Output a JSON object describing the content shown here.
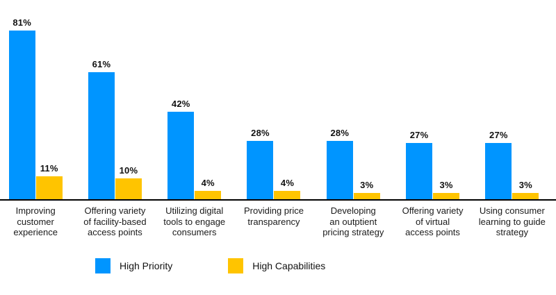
{
  "chart_data": {
    "type": "bar",
    "categories": [
      "Improving\ncustomer\nexperience",
      "Offering variety\nof facility-based\naccess points",
      "Utilizing digital\ntools to engage\nconsumers",
      "Providing price\ntransparency",
      "Developing\nan outptient\npricing strategy",
      "Offering variety\nof virtual\naccess points",
      "Using consumer\nlearning to guide\nstrategy"
    ],
    "series": [
      {
        "name": "High Priority",
        "color": "#0095FF",
        "values": [
          81,
          61,
          42,
          28,
          28,
          27,
          27
        ]
      },
      {
        "name": "High Capabilities",
        "color": "#FFC400",
        "values": [
          11,
          10,
          4,
          4,
          3,
          3,
          3
        ]
      }
    ],
    "unit": "%",
    "value_labels": true,
    "title": "",
    "xlabel": "",
    "ylabel": "",
    "ylim": [
      0,
      90
    ],
    "grid": false,
    "legend_position": "bottom"
  },
  "colors": {
    "axis": "#000000",
    "background": "#ffffff",
    "text": "#111111"
  }
}
